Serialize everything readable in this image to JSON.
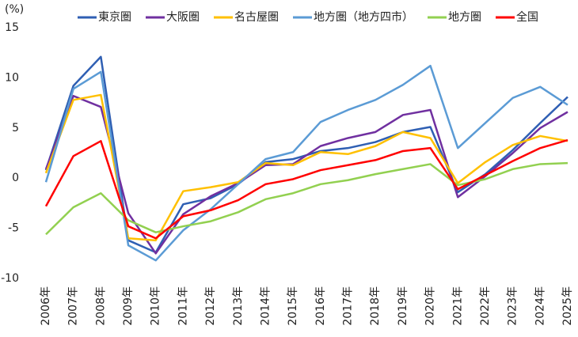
{
  "chart_data": {
    "type": "line",
    "unit_label": "(%)",
    "categories": [
      "2006年",
      "2007年",
      "2008年",
      "2009年",
      "2010年",
      "2011年",
      "2012年",
      "2013年",
      "2014年",
      "2015年",
      "2016年",
      "2017年",
      "2018年",
      "2019年",
      "2020年",
      "2021年",
      "2022年",
      "2023年",
      "2024年",
      "2025年"
    ],
    "series": [
      {
        "name": "東京圏",
        "color": "#2f5fb3",
        "values": [
          0.8,
          9.2,
          12.1,
          -6.2,
          -7.4,
          -2.6,
          -2.0,
          -0.6,
          1.6,
          1.9,
          2.7,
          3.0,
          3.6,
          4.6,
          5.1,
          -1.4,
          0.4,
          2.8,
          5.5,
          8.1
        ]
      },
      {
        "name": "大阪圏",
        "color": "#7030a0",
        "values": [
          0.9,
          8.2,
          7.1,
          -3.5,
          -7.5,
          -3.6,
          -1.8,
          -0.5,
          1.3,
          1.4,
          3.2,
          4.0,
          4.6,
          6.3,
          6.8,
          -1.9,
          0.2,
          2.5,
          5.0,
          6.6
        ]
      },
      {
        "name": "名古屋圏",
        "color": "#ffc000",
        "values": [
          0.5,
          7.8,
          8.3,
          -6.0,
          -6.2,
          -1.3,
          -0.9,
          -0.4,
          1.5,
          1.3,
          2.6,
          2.4,
          3.2,
          4.6,
          4.0,
          -0.5,
          1.6,
          3.3,
          4.2,
          3.7
        ]
      },
      {
        "name": "地方圏（地方四市）",
        "color": "#5b9bd5",
        "values": [
          -0.4,
          8.9,
          10.6,
          -6.7,
          -8.2,
          -5.2,
          -3.1,
          -0.6,
          1.9,
          2.6,
          5.6,
          6.8,
          7.8,
          9.3,
          11.2,
          3.0,
          5.5,
          8.0,
          9.1,
          7.3
        ]
      },
      {
        "name": "地方圏",
        "color": "#92d050",
        "values": [
          -5.6,
          -2.9,
          -1.5,
          -4.2,
          -5.4,
          -4.8,
          -4.3,
          -3.4,
          -2.1,
          -1.5,
          -0.6,
          -0.2,
          0.4,
          0.9,
          1.4,
          -0.7,
          -0.1,
          0.9,
          1.4,
          1.5
        ]
      },
      {
        "name": "全国",
        "color": "#ff0000",
        "values": [
          -2.8,
          2.2,
          3.7,
          -4.8,
          -6.0,
          -3.8,
          -3.2,
          -2.2,
          -0.6,
          -0.1,
          0.8,
          1.3,
          1.8,
          2.7,
          3.0,
          -1.1,
          0.3,
          1.7,
          3.0,
          3.8
        ]
      }
    ],
    "ylim": [
      -10,
      15
    ],
    "yticks": [
      -10,
      -5,
      0,
      5,
      10,
      15
    ],
    "grid": false,
    "legend": "top"
  }
}
